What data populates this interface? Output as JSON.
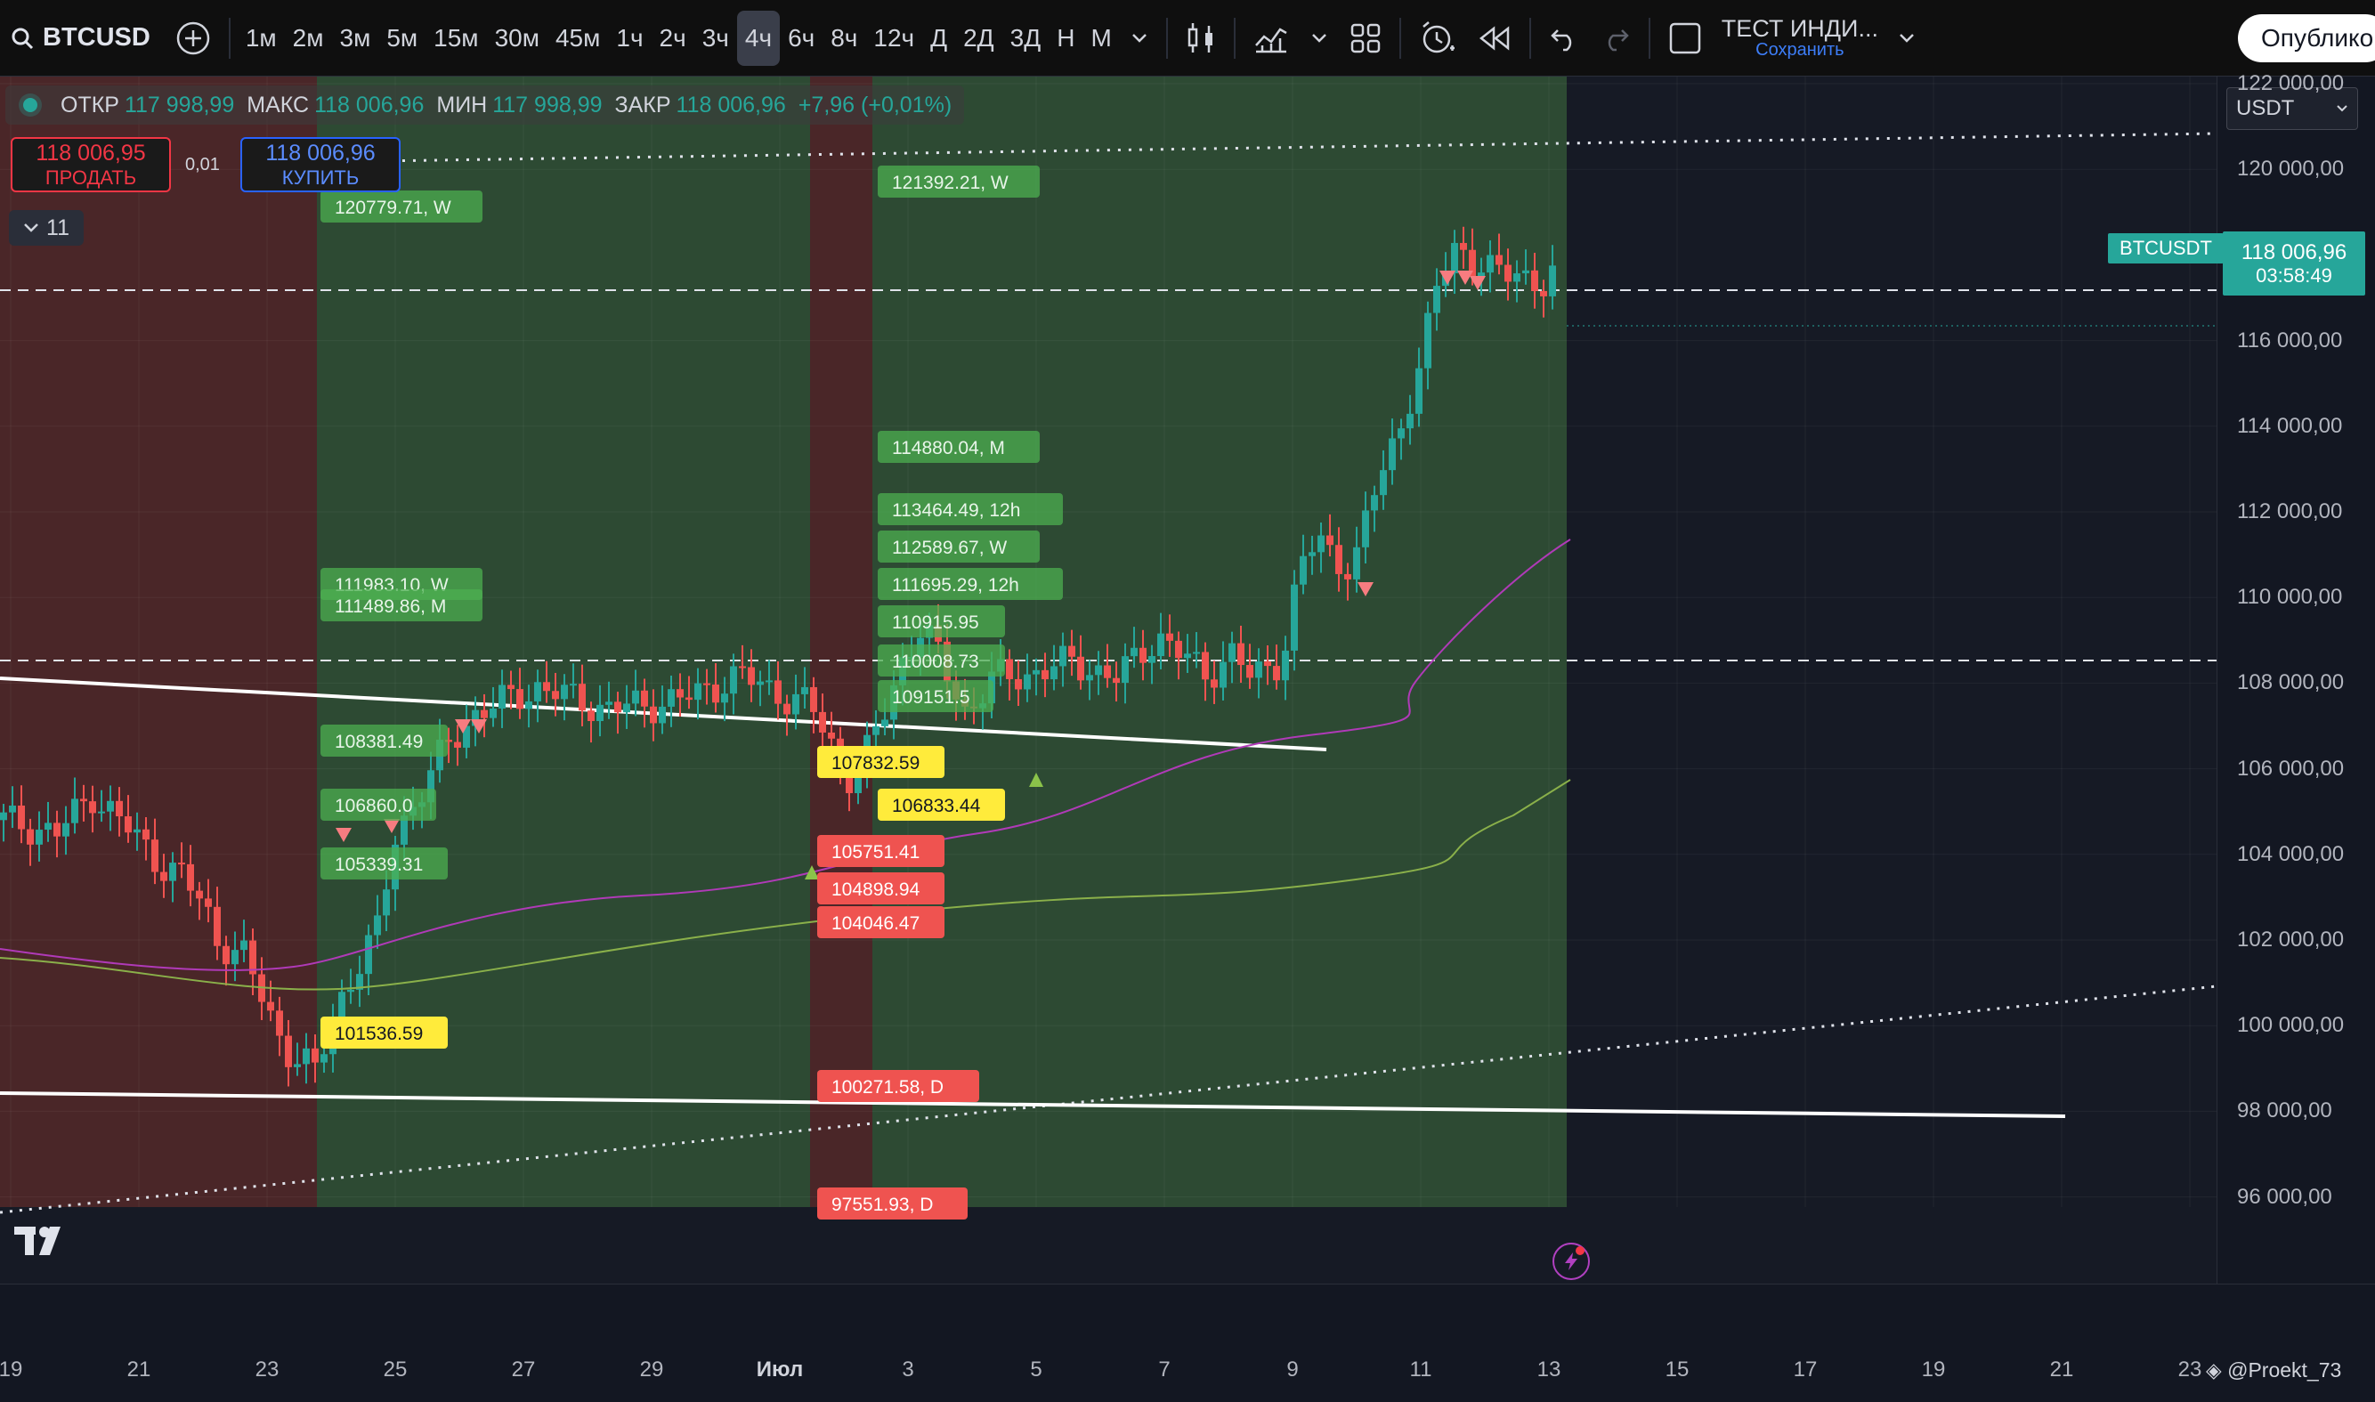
{
  "symbol": {
    "name": "BTCUSD"
  },
  "toolbar": {
    "intervals": [
      "1м",
      "2м",
      "3м",
      "5м",
      "15м",
      "30м",
      "45м",
      "1ч",
      "2ч",
      "3ч",
      "4ч",
      "6ч",
      "8ч",
      "12ч",
      "Д",
      "2Д",
      "3Д",
      "Н",
      "М"
    ],
    "active_interval": "4ч",
    "layout_name": "ТЕСТ ИНДИ...",
    "save_label": "Сохранить",
    "publish_label": "Опублико"
  },
  "legend": {
    "open_label": "ОТКР",
    "open": "117 998,99",
    "high_label": "МАКС",
    "high": "118 006,96",
    "low_label": "МИН",
    "low": "117 998,99",
    "close_label": "ЗАКР",
    "close": "118 006,96",
    "change": "+7,96 (+0,01%)"
  },
  "trading": {
    "sell_price": "118 006,95",
    "sell_label": "ПРОДАТЬ",
    "buy_price": "118 006,96",
    "buy_label": "КУПИТЬ",
    "qty": "0,01",
    "indicators_count": "11"
  },
  "price_axis": {
    "currency": "USDT",
    "labels": [
      "122 000,00",
      "120 000,00",
      "116 000,00",
      "114 000,00",
      "112 000,00",
      "110 000,00",
      "108 000,00",
      "106 000,00",
      "104 000,00",
      "102 000,00",
      "100 000,00",
      "98 000,00",
      "96 000,00"
    ],
    "symbol_tag": "BTCUSDT",
    "last_price": "118 006,96",
    "countdown": "03:58:49"
  },
  "time_axis": {
    "labels": [
      "19",
      "21",
      "23",
      "25",
      "27",
      "29",
      "Июл",
      "3",
      "5",
      "7",
      "9",
      "11",
      "13",
      "15",
      "17",
      "19",
      "21",
      "23"
    ]
  },
  "levels": [
    {
      "text": "121392.21, W",
      "color": "green"
    },
    {
      "text": "120779.71, W",
      "color": "green"
    },
    {
      "text": "114880.04, M",
      "color": "green"
    },
    {
      "text": "113464.49, 12h",
      "color": "green"
    },
    {
      "text": "112589.67, W",
      "color": "green"
    },
    {
      "text": "111983.10, W",
      "color": "green"
    },
    {
      "text": "111489.86, M",
      "color": "green"
    },
    {
      "text": "111695.29, 12h",
      "color": "green"
    },
    {
      "text": "110915.95",
      "color": "green"
    },
    {
      "text": "110008.73",
      "color": "green"
    },
    {
      "text": "109151.5",
      "color": "green"
    },
    {
      "text": "108381.49",
      "color": "green"
    },
    {
      "text": "107832.59",
      "color": "yellow"
    },
    {
      "text": "106860.0",
      "color": "green"
    },
    {
      "text": "106833.44",
      "color": "yellow"
    },
    {
      "text": "105339.31",
      "color": "green"
    },
    {
      "text": "105751.41",
      "color": "red"
    },
    {
      "text": "104898.94",
      "color": "red"
    },
    {
      "text": "104046.47",
      "color": "red"
    },
    {
      "text": "101536.59",
      "color": "yellow"
    },
    {
      "text": "100271.58, D",
      "color": "red"
    },
    {
      "text": "97551.93, D",
      "color": "red"
    }
  ],
  "watermark": "@Proekt_73",
  "colors": {
    "up": "#26a69a",
    "down": "#ef5350",
    "bg": "#161a25",
    "zone_green": "#2d4a33",
    "zone_red": "#4a2628"
  }
}
